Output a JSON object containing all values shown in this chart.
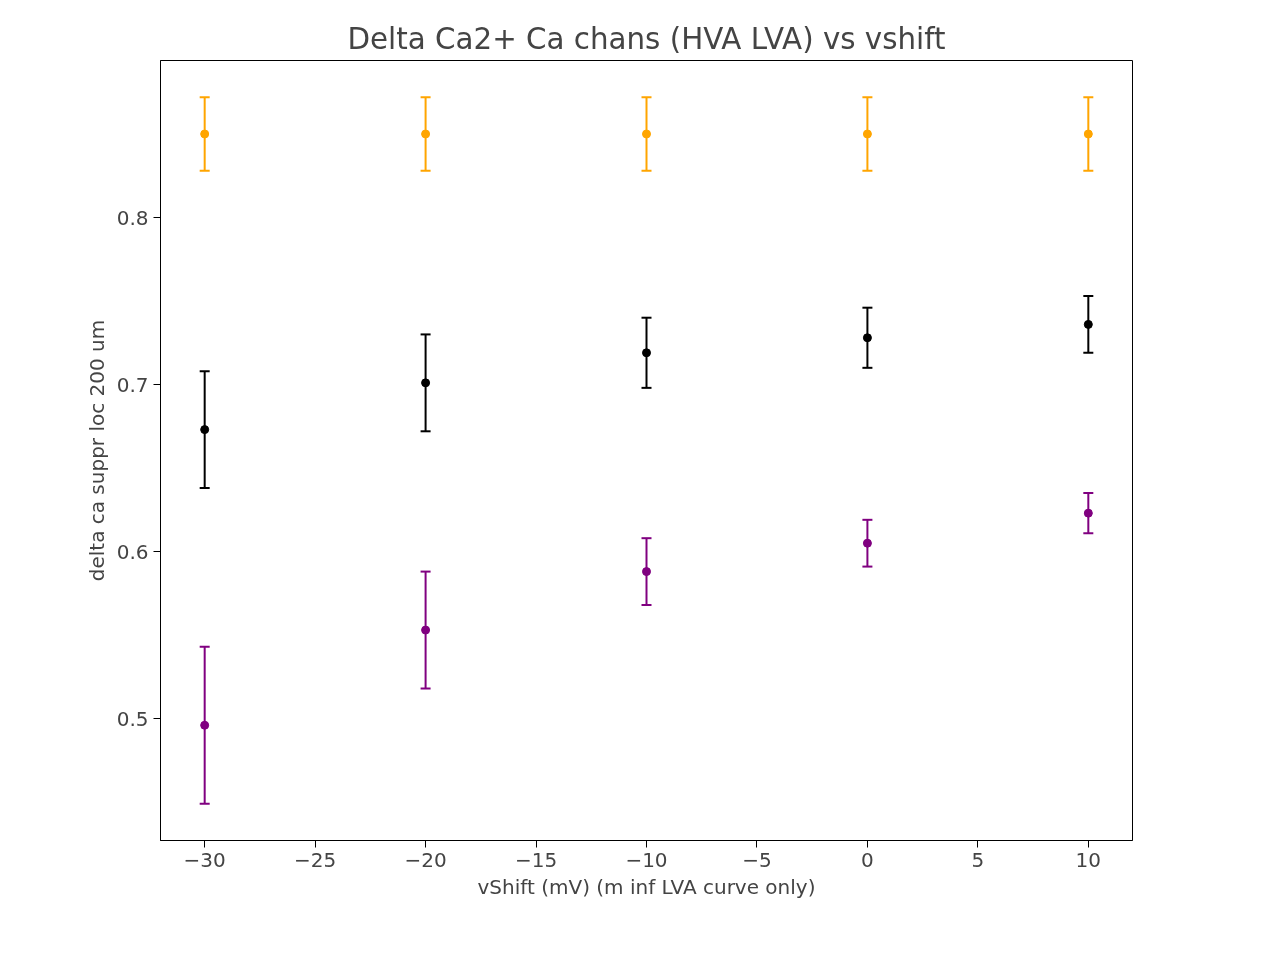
{
  "chart_data": {
    "type": "scatter",
    "title": "Delta Ca2+ Ca chans (HVA LVA) vs vshift",
    "xlabel": "vShift (mV) (m inf LVA curve only)",
    "ylabel": "delta ca suppr loc 200 um",
    "x": [
      -30,
      -20,
      -10,
      0,
      10
    ],
    "series": [
      {
        "color": "#ffa500",
        "values": [
          0.85,
          0.85,
          0.85,
          0.85,
          0.85
        ],
        "errors": [
          0.022,
          0.022,
          0.022,
          0.022,
          0.022
        ]
      },
      {
        "color": "#000000",
        "values": [
          0.673,
          0.701,
          0.719,
          0.728,
          0.736
        ],
        "errors": [
          0.035,
          0.029,
          0.021,
          0.018,
          0.017
        ]
      },
      {
        "color": "#800080",
        "values": [
          0.496,
          0.553,
          0.588,
          0.605,
          0.623
        ],
        "errors": [
          0.047,
          0.035,
          0.02,
          0.014,
          0.012
        ]
      }
    ],
    "xlim": [
      -32,
      12
    ],
    "ylim": [
      0.427,
      0.894
    ],
    "xticks": [
      -30,
      -25,
      -20,
      -15,
      -10,
      -5,
      0,
      5,
      10
    ],
    "yticks": [
      0.5,
      0.6,
      0.7,
      0.8
    ],
    "marker": "circle",
    "grid": false
  }
}
